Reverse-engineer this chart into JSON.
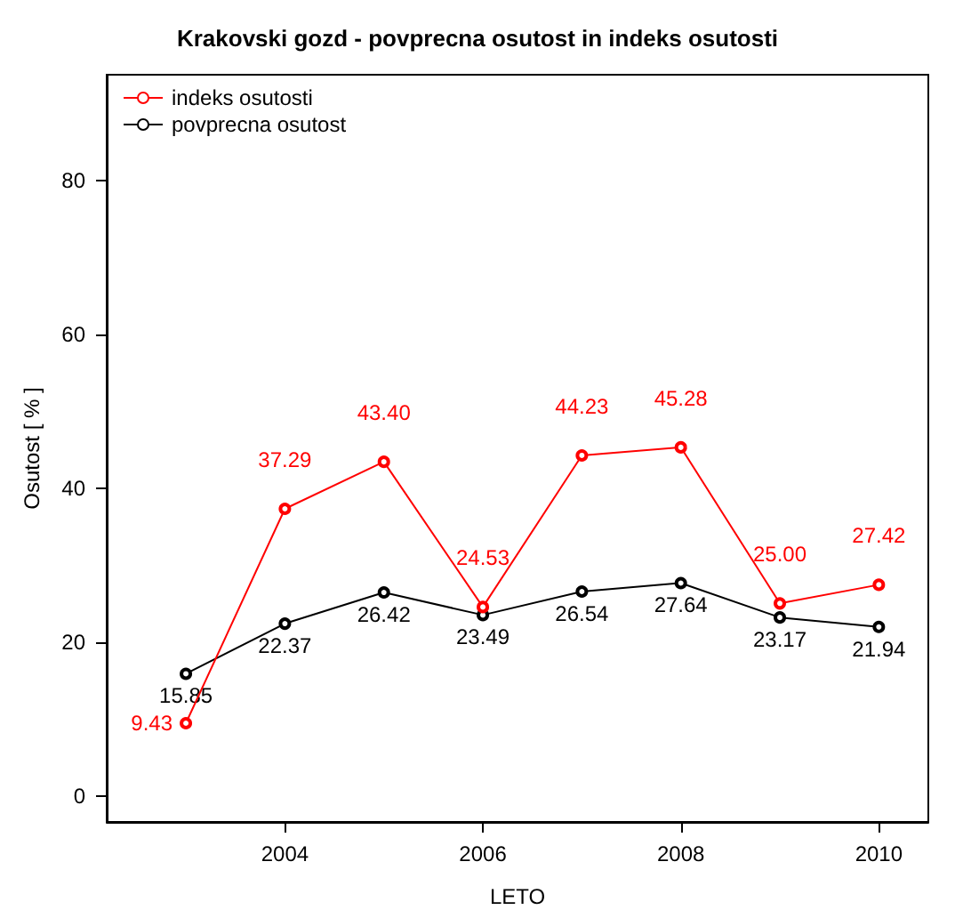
{
  "chart_data": {
    "type": "line",
    "title": "Krakovski gozd - povprecna osutost in indeks osutosti",
    "xlabel": "LETO",
    "ylabel": "Osutost [ % ]",
    "x": [
      2003,
      2004,
      2005,
      2006,
      2007,
      2008,
      2009,
      2010
    ],
    "series": [
      {
        "name": "indeks osutosti",
        "color": "#ff0000",
        "values": [
          9.43,
          37.29,
          43.4,
          24.53,
          44.23,
          45.28,
          25.0,
          27.42
        ],
        "value_labels": [
          "9.43",
          "37.29",
          "43.40",
          "24.53",
          "44.23",
          "45.28",
          "25.00",
          "27.42"
        ]
      },
      {
        "name": "povprecna osutost",
        "color": "#000000",
        "values": [
          15.85,
          22.37,
          26.42,
          23.49,
          26.54,
          27.64,
          23.17,
          21.94
        ]
      }
    ],
    "xlim": [
      2002.2,
      2010.5
    ],
    "xticks": [
      2004,
      2006,
      2008,
      2010
    ],
    "ylim": [
      -3.4,
      93.7
    ],
    "yticks": [
      0,
      20,
      40,
      60,
      80
    ],
    "data_labels": true,
    "legend": "top left",
    "grid": false,
    "marker": "circle",
    "line_style": "solid"
  }
}
